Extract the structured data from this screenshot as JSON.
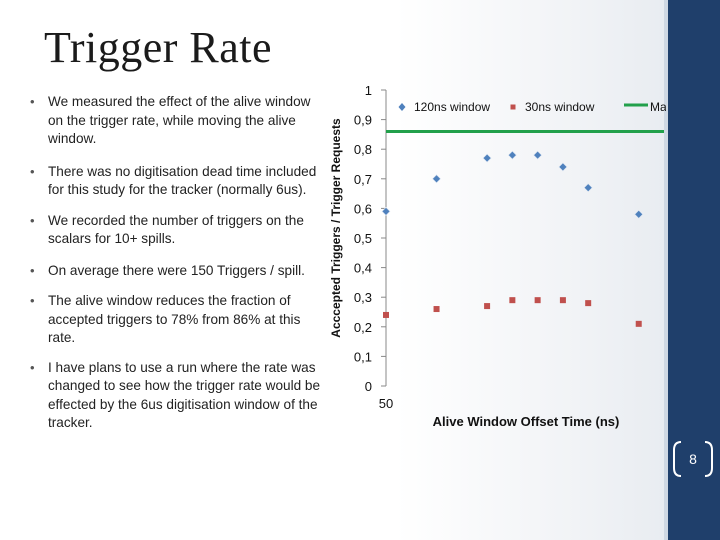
{
  "slide": {
    "title": "Trigger Rate",
    "page_number": "8",
    "accent_color": "#1f3f6b"
  },
  "bullets": [
    "We measured the effect of the alive window on the trigger rate, while moving the alive window.",
    "There was no digitisation dead time included for this study for the tracker (normally 6us).",
    "We recorded the number of triggers on the scalars for 10+ spills.",
    "On average there were 150 Triggers / spill.",
    "The alive window reduces the fraction of accepted triggers to 78% from 86% at this rate.",
    "I have plans to use a run where the rate was changed to see how the trigger rate would be effected by the 6us digitisation window of the tracker."
  ],
  "chart_data": {
    "type": "scatter",
    "title": "",
    "xlabel": "Alive Window Offset Time (ns)",
    "ylabel": "Acccepted Triggers / Trigger Requests",
    "ylim": [
      0,
      1
    ],
    "yticks": [
      "0",
      "0,1",
      "0,2",
      "0,3",
      "0,4",
      "0,5",
      "0,6",
      "0,7",
      "0,8",
      "0,9",
      "1"
    ],
    "xticks": [
      "50"
    ],
    "xlim": [
      50,
      160
    ],
    "grid": false,
    "legend_position": "top",
    "series": [
      {
        "name": "120ns window",
        "marker": "diamond",
        "color": "#4f81bd",
        "x": [
          50,
          70,
          90,
          100,
          110,
          120,
          130,
          150
        ],
        "y": [
          0.59,
          0.7,
          0.77,
          0.78,
          0.78,
          0.74,
          0.67,
          0.58
        ]
      },
      {
        "name": "30ns window",
        "marker": "square",
        "color": "#c0504d",
        "x": [
          50,
          70,
          90,
          100,
          110,
          120,
          130,
          150
        ],
        "y": [
          0.24,
          0.26,
          0.27,
          0.29,
          0.29,
          0.29,
          0.28,
          0.21
        ]
      },
      {
        "name": "Maximum",
        "marker": "line",
        "color": "#22a04b",
        "x": [
          50,
          160
        ],
        "y": [
          0.86,
          0.86
        ]
      }
    ]
  }
}
